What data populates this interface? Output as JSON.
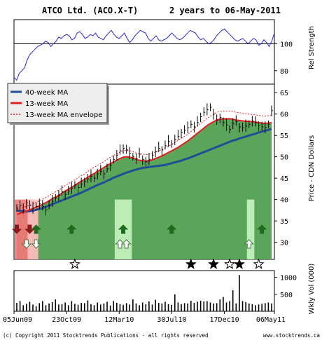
{
  "header": {
    "title": "ATCO Ltd. (ACO.X-T)",
    "range": "2 years to 06-May-2011"
  },
  "footer": {
    "copyright": "(c) Copyright 2011 Stocktrends Publications - all rights reserved",
    "site": "www.stocktrends.ca"
  },
  "colors": {
    "background": "#ffffff",
    "price_fill": "#5aa55a",
    "ma40": "#1f4e94",
    "ma13": "#e02020",
    "envelope": "#e02020",
    "rel_strength": "#2a2ad0",
    "volume": "#000000",
    "up_arrow": "#1e6b1e",
    "down_arrow": "#8b1a1a",
    "bear_band": "#f47777",
    "bull_band": "#c8f5c0"
  },
  "chart_data": [
    {
      "id": "relative-strength",
      "type": "line",
      "ylabel": "Rel Strength",
      "ylim": [
        70,
        118
      ],
      "yticks": [
        80,
        100
      ],
      "reference_line": 100,
      "series": [
        {
          "values": [
            75,
            73,
            78,
            80,
            82,
            88,
            92,
            94,
            96,
            98,
            99,
            100,
            102,
            101,
            98,
            100,
            102,
            105,
            104,
            106,
            107,
            106,
            103,
            104,
            108,
            109,
            107,
            104,
            105,
            107,
            106,
            108,
            105,
            104,
            103,
            106,
            108,
            110,
            107,
            105,
            104,
            106,
            108,
            104,
            101,
            103,
            106,
            108,
            110,
            109,
            108,
            104,
            102,
            104,
            106,
            103,
            102,
            103,
            104,
            106,
            108,
            106,
            104,
            103,
            104,
            106,
            108,
            110,
            109,
            108,
            105,
            103,
            104,
            102,
            100,
            101,
            103,
            106,
            108,
            110,
            111,
            109,
            107,
            105,
            103,
            102,
            103,
            104,
            102,
            100,
            102,
            104,
            103,
            99,
            100,
            103,
            101,
            98,
            102,
            108
          ]
        }
      ]
    },
    {
      "id": "price",
      "type": "line",
      "ylabel": "Price - CDN Dollars",
      "ylim": [
        26,
        67
      ],
      "yticks": [
        30,
        35,
        40,
        45,
        50,
        55,
        60,
        65
      ],
      "legend": {
        "placement": "top-left",
        "entries": [
          "40-week MA",
          "13-week MA",
          "13-week MA envelope"
        ]
      },
      "series": [
        {
          "name": "40-week MA",
          "values": [
            37.5,
            37.3,
            37.2,
            37.2,
            37.3,
            37.4,
            37.6,
            37.8,
            38.0,
            38.3,
            38.6,
            38.9,
            39.2,
            39.5,
            39.8,
            40.1,
            40.4,
            40.7,
            41.0,
            41.3,
            41.6,
            42.0,
            42.3,
            42.7,
            43.0,
            43.4,
            43.7,
            44.0,
            44.4,
            44.7,
            45.1,
            45.4,
            45.7,
            46.0,
            46.3,
            46.5,
            46.8,
            47.0,
            47.2,
            47.4,
            47.5,
            47.6,
            47.7,
            47.8,
            47.9,
            48.0,
            48.1,
            48.3,
            48.5,
            48.7,
            48.9,
            49.1,
            49.4,
            49.6,
            49.9,
            50.2,
            50.5,
            50.8,
            51.1,
            51.4,
            51.7,
            52.0,
            52.3,
            52.6,
            52.9,
            53.2,
            53.5,
            53.8,
            54.0,
            54.3,
            54.5,
            54.7,
            55.0,
            55.2,
            55.4,
            55.7,
            55.9,
            56.1,
            56.3,
            56.5
          ]
        },
        {
          "name": "13-week MA",
          "values": [
            36.5,
            36.8,
            37.0,
            37.3,
            37.6,
            37.9,
            38.2,
            38.5,
            38.9,
            39.3,
            39.7,
            40.2,
            40.6,
            41.0,
            41.5,
            42.0,
            42.4,
            42.9,
            43.3,
            43.8,
            44.3,
            44.7,
            45.2,
            45.7,
            46.1,
            46.6,
            47.0,
            47.5,
            48.0,
            48.4,
            48.8,
            49.2,
            49.6,
            49.9,
            50.0,
            49.9,
            49.7,
            49.4,
            49.2,
            49.1,
            49.0,
            49.1,
            49.3,
            49.6,
            49.9,
            50.2,
            50.6,
            51.0,
            51.4,
            51.8,
            52.2,
            52.7,
            53.2,
            53.7,
            54.3,
            54.9,
            55.5,
            56.1,
            56.7,
            57.3,
            57.8,
            58.2,
            58.6,
            58.8,
            58.9,
            58.9,
            58.9,
            58.8,
            58.6,
            58.5,
            58.4,
            58.3,
            58.3,
            58.2,
            58.1,
            58.0,
            57.9,
            57.8,
            57.9,
            58.0
          ]
        },
        {
          "name": "13-week MA envelope",
          "values": [
            37.6,
            37.9,
            38.1,
            38.4,
            38.7,
            39.0,
            39.3,
            39.7,
            40.1,
            40.5,
            40.9,
            41.4,
            41.8,
            42.2,
            42.7,
            43.3,
            43.7,
            44.2,
            44.6,
            45.1,
            45.6,
            46.0,
            46.6,
            47.1,
            47.5,
            48.0,
            48.4,
            48.9,
            49.4,
            49.9,
            50.3,
            50.7,
            51.1,
            51.4,
            51.5,
            51.4,
            51.2,
            50.9,
            50.7,
            50.6,
            50.5,
            50.6,
            50.8,
            51.1,
            51.4,
            51.7,
            52.1,
            52.5,
            52.9,
            53.4,
            53.8,
            54.3,
            54.8,
            55.3,
            55.9,
            56.5,
            57.2,
            57.8,
            58.4,
            59.0,
            59.5,
            59.9,
            60.4,
            60.6,
            60.7,
            60.7,
            60.7,
            60.6,
            60.4,
            60.3,
            60.2,
            60.0,
            60.0,
            59.9,
            59.8,
            59.7,
            59.6,
            59.5,
            59.6,
            59.7
          ]
        },
        {
          "name": "price",
          "values": [
            38.0,
            38.6,
            37.6,
            39.2,
            38.6,
            38.0,
            38.4,
            39.0,
            38.4,
            37.6,
            38.6,
            39.6,
            40.4,
            41.0,
            41.8,
            41.2,
            42.0,
            42.6,
            43.4,
            42.8,
            43.6,
            44.2,
            44.8,
            45.4,
            45.0,
            46.0,
            46.6,
            46.0,
            47.2,
            48.0,
            49.4,
            50.4,
            51.4,
            52.0,
            51.6,
            50.8,
            50.0,
            49.6,
            50.6,
            49.4,
            48.8,
            49.4,
            50.4,
            51.2,
            52.0,
            51.6,
            52.6,
            53.6,
            53.0,
            54.0,
            54.8,
            55.6,
            56.2,
            56.8,
            57.6,
            57.0,
            58.0,
            59.4,
            60.4,
            61.0,
            61.6,
            60.0,
            58.4,
            59.2,
            58.0,
            57.4,
            56.4,
            57.8,
            58.2,
            57.0,
            56.8,
            57.2,
            57.6,
            58.4,
            58.0,
            57.4,
            57.0,
            56.8,
            57.6,
            60.8
          ]
        }
      ],
      "signals": [
        {
          "week": 0,
          "type": "down-arrow"
        },
        {
          "week": 4,
          "type": "down-arrow"
        },
        {
          "week": 3,
          "type": "outline-down-arrow"
        },
        {
          "week": 6,
          "type": "outline-down-arrow"
        },
        {
          "week": 6,
          "type": "up-arrow"
        },
        {
          "week": 17,
          "type": "up-arrow"
        },
        {
          "week": 33,
          "type": "up-arrow"
        },
        {
          "week": 32,
          "type": "outline-up-arrow"
        },
        {
          "week": 34,
          "type": "outline-up-arrow"
        },
        {
          "week": 48,
          "type": "up-arrow"
        },
        {
          "week": 72,
          "type": "outline-up-arrow"
        },
        {
          "week": 76,
          "type": "up-arrow"
        }
      ],
      "bands": [
        {
          "from": 0,
          "to": 4,
          "kind": "bear"
        },
        {
          "from": 4,
          "to": 6,
          "kind": "bear-light"
        },
        {
          "from": 31,
          "to": 35,
          "kind": "bull"
        },
        {
          "from": 72,
          "to": 73,
          "kind": "bull"
        }
      ]
    },
    {
      "id": "star-ratings",
      "type": "scatter",
      "points": [
        {
          "week": 18,
          "kind": "open-star"
        },
        {
          "week": 54,
          "kind": "filled-star"
        },
        {
          "week": 61,
          "kind": "filled-star"
        },
        {
          "week": 66,
          "kind": "open-star"
        },
        {
          "week": 69,
          "kind": "filled-star"
        },
        {
          "week": 75,
          "kind": "open-star"
        }
      ]
    },
    {
      "id": "volume",
      "type": "bar",
      "ylabel": "Wkly Vol (000)",
      "ylim": [
        0,
        1200
      ],
      "yticks": [
        500,
        1000
      ],
      "values": [
        250,
        300,
        180,
        220,
        280,
        200,
        150,
        240,
        300,
        180,
        230,
        270,
        350,
        200,
        210,
        260,
        180,
        300,
        220,
        190,
        250,
        240,
        320,
        210,
        180,
        260,
        200,
        230,
        280,
        170,
        300,
        250,
        210,
        190,
        240,
        200,
        350,
        230,
        180,
        260,
        210,
        290,
        200,
        340,
        250,
        230,
        280,
        210,
        190,
        500,
        260,
        210,
        240,
        230,
        310,
        250,
        280,
        310,
        290,
        300,
        260,
        230,
        240,
        350,
        420,
        260,
        300,
        620,
        230,
        1070,
        300,
        270,
        230,
        210,
        180,
        200,
        220,
        240,
        260,
        230
      ],
      "xtick_labels": [
        "05Jun09",
        "23Oct09",
        "12Mar10",
        "30Jul10",
        "17Dec10",
        "06May11"
      ],
      "xtick_weeks": [
        0,
        20,
        40,
        60,
        80,
        99
      ]
    }
  ]
}
